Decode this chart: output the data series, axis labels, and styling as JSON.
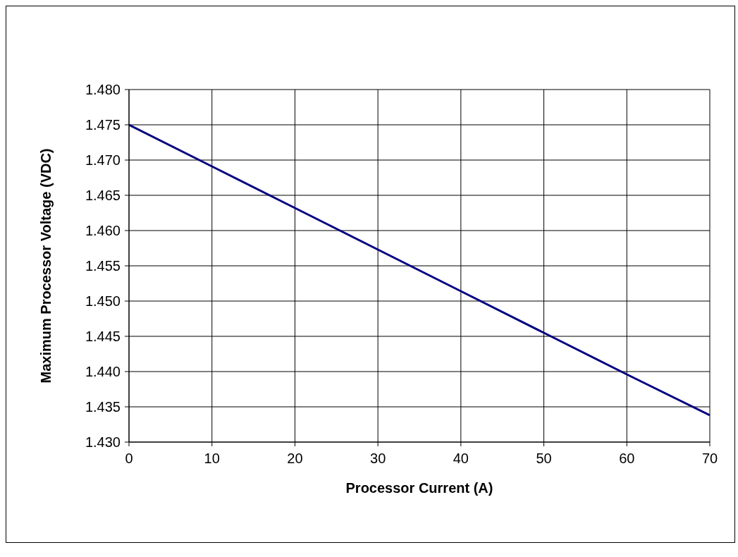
{
  "chart_data": {
    "type": "line",
    "xlabel": "Processor Current (A)",
    "ylabel": "Maximum Processor Voltage (VDC)",
    "x": [
      0,
      10,
      20,
      30,
      40,
      50,
      60,
      70
    ],
    "series": [
      {
        "color": "#000080",
        "values": [
          1.475,
          1.4691,
          1.4632,
          1.4573,
          1.4514,
          1.4455,
          1.4396,
          1.4338
        ]
      }
    ],
    "xlim": [
      0,
      70
    ],
    "xticks": [
      0,
      10,
      20,
      30,
      40,
      50,
      60,
      70
    ],
    "ylim": [
      1.43,
      1.48
    ],
    "yticks": [
      {
        "value": 1.43,
        "label": "1.430"
      },
      {
        "value": 1.435,
        "label": "1.435"
      },
      {
        "value": 1.44,
        "label": "1.440"
      },
      {
        "value": 1.445,
        "label": "1.445"
      },
      {
        "value": 1.45,
        "label": "1.450"
      },
      {
        "value": 1.455,
        "label": "1.455"
      },
      {
        "value": 1.46,
        "label": "1.460"
      },
      {
        "value": 1.465,
        "label": "1.465"
      },
      {
        "value": 1.47,
        "label": "1.470"
      },
      {
        "value": 1.475,
        "label": "1.475"
      },
      {
        "value": 1.48,
        "label": "1.480"
      }
    ],
    "grid": true,
    "marker": "none",
    "line_style": "solid"
  }
}
